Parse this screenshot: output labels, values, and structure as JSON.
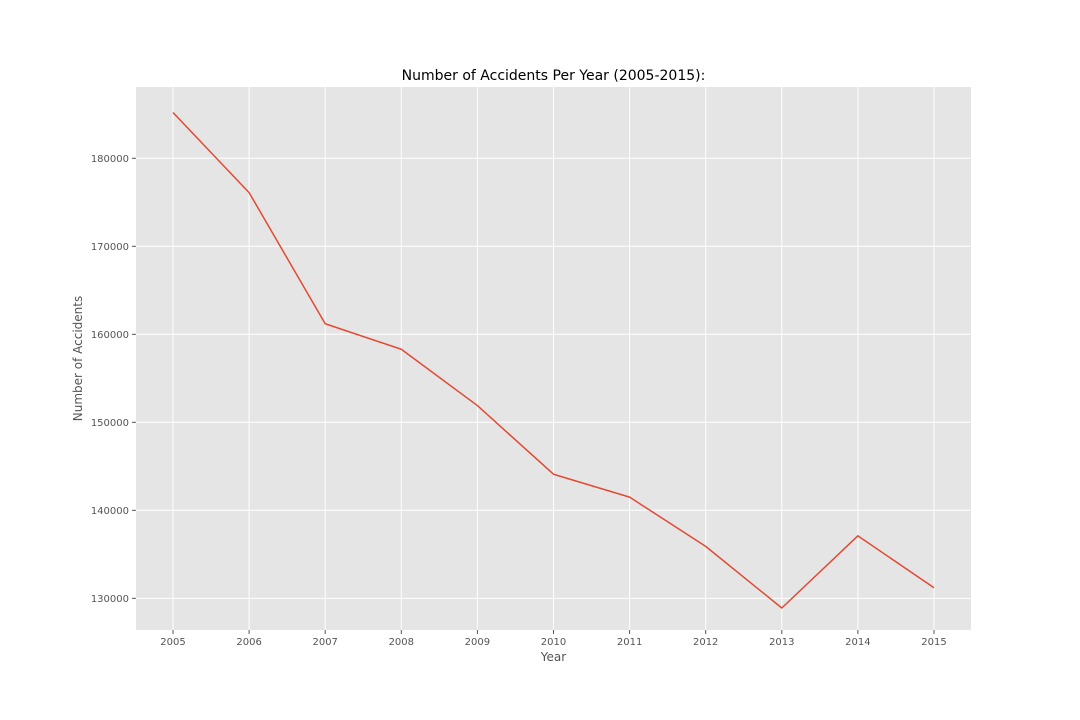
{
  "chart_data": {
    "type": "line",
    "title": "Number of Accidents Per Year (2005-2015):",
    "xlabel": "Year",
    "ylabel": "Number of Accidents",
    "x": [
      2005,
      2006,
      2007,
      2008,
      2009,
      2010,
      2011,
      2012,
      2013,
      2014,
      2015
    ],
    "series": [
      {
        "values": [
          185200,
          176100,
          161200,
          158300,
          151900,
          144100,
          141500,
          135900,
          128900,
          137100,
          131200
        ]
      }
    ],
    "ylim": [
      126400,
      188100
    ],
    "yticks": [
      130000,
      140000,
      150000,
      160000,
      170000,
      180000
    ],
    "ytick_labels": [
      "130000",
      "140000",
      "150000",
      "160000",
      "170000",
      "180000"
    ],
    "xtick_labels": [
      "2005",
      "2006",
      "2007",
      "2008",
      "2009",
      "2010",
      "2011",
      "2012",
      "2013",
      "2014",
      "2015"
    ],
    "grid": true,
    "colors": {
      "line": "#e24a33",
      "plot_background": "#e5e5e5",
      "grid": "#ffffff"
    }
  }
}
